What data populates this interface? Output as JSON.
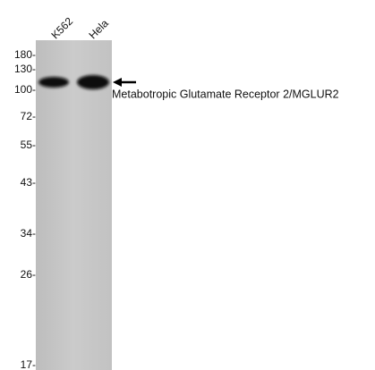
{
  "lanes": [
    "K562",
    "Hela"
  ],
  "markers": [
    "180-",
    "130-",
    "100-",
    "72-",
    "55-",
    "43-",
    "34-",
    "26-",
    "17-"
  ],
  "band_label": "Metabotropic Glutamate Receptor 2/MGLUR2"
}
